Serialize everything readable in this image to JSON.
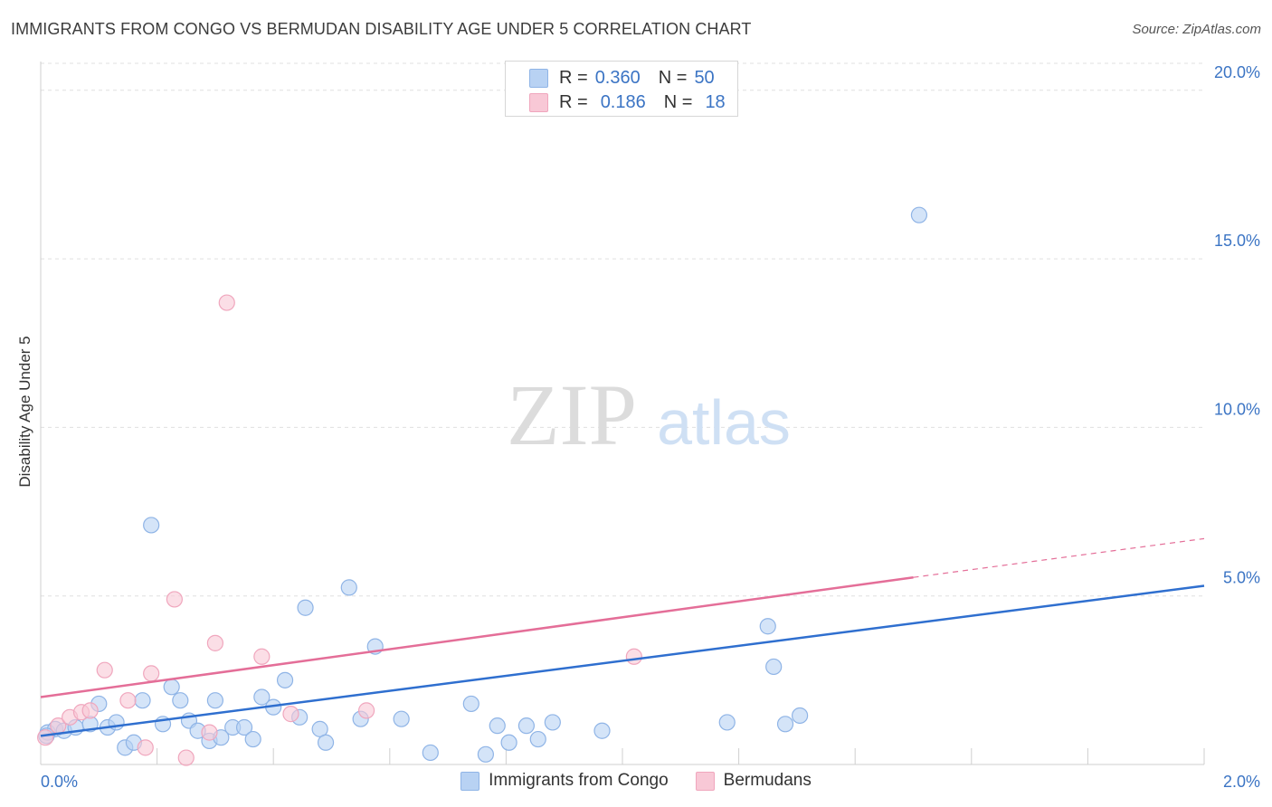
{
  "title": "IMMIGRANTS FROM CONGO VS BERMUDAN DISABILITY AGE UNDER 5 CORRELATION CHART",
  "source": "Source: ZipAtlas.com",
  "watermark": {
    "zip": "ZIP",
    "atlas": "atlas"
  },
  "colors": {
    "blue_fill": "#b8d2f3",
    "blue_stroke": "#8fb4e6",
    "blue_line": "#2f6fcf",
    "pink_fill": "#f8c8d6",
    "pink_stroke": "#f0a6bd",
    "pink_line": "#e46e98",
    "tick_label": "#3b74c4",
    "grid": "#e0e0e0"
  },
  "legend": {
    "rows": [
      {
        "r_label": "R =",
        "r_value": "0.360",
        "n_label": "N =",
        "n_value": "50",
        "color": "#b8d2f3"
      },
      {
        "r_label": "R =",
        "r_value": "0.186",
        "n_label": "N =",
        "n_value": "18",
        "color": "#f8c8d6"
      }
    ]
  },
  "chart_data": {
    "type": "scatter",
    "xlabel": "",
    "ylabel": "Disability Age Under 5",
    "xlim": [
      0,
      2.0
    ],
    "ylim": [
      0,
      20.8
    ],
    "x_tick_labels": [
      {
        "value": 0,
        "label": "0.0%"
      },
      {
        "value": 2.0,
        "label": "2.0%"
      }
    ],
    "y_tick_labels": [
      {
        "value": 5,
        "label": "5.0%"
      },
      {
        "value": 10,
        "label": "10.0%"
      },
      {
        "value": 15,
        "label": "15.0%"
      },
      {
        "value": 20,
        "label": "20.0%"
      }
    ],
    "x_minor_ticks": [
      0.2,
      0.4,
      0.6,
      0.8,
      1.0,
      1.2,
      1.4,
      1.6,
      1.8,
      2.0
    ],
    "grid": true,
    "legend_placement": "bottom",
    "series": [
      {
        "name": "Immigrants from Congo",
        "color": "#b8d2f3",
        "points": [
          [
            0.012,
            0.95
          ],
          [
            0.025,
            1.05
          ],
          [
            0.04,
            1.0
          ],
          [
            0.06,
            1.1
          ],
          [
            0.085,
            1.2
          ],
          [
            0.1,
            1.8
          ],
          [
            0.115,
            1.1
          ],
          [
            0.13,
            1.25
          ],
          [
            0.145,
            0.5
          ],
          [
            0.16,
            0.65
          ],
          [
            0.175,
            1.9
          ],
          [
            0.19,
            7.1
          ],
          [
            0.21,
            1.2
          ],
          [
            0.225,
            2.3
          ],
          [
            0.24,
            1.9
          ],
          [
            0.255,
            1.3
          ],
          [
            0.27,
            1.0
          ],
          [
            0.29,
            0.7
          ],
          [
            0.3,
            1.9
          ],
          [
            0.31,
            0.8
          ],
          [
            0.33,
            1.1
          ],
          [
            0.35,
            1.1
          ],
          [
            0.365,
            0.75
          ],
          [
            0.38,
            2.0
          ],
          [
            0.4,
            1.7
          ],
          [
            0.42,
            2.5
          ],
          [
            0.445,
            1.4
          ],
          [
            0.455,
            4.65
          ],
          [
            0.48,
            1.05
          ],
          [
            0.49,
            0.65
          ],
          [
            0.53,
            5.25
          ],
          [
            0.55,
            1.35
          ],
          [
            0.575,
            3.5
          ],
          [
            0.62,
            1.35
          ],
          [
            0.67,
            0.35
          ],
          [
            0.74,
            1.8
          ],
          [
            0.765,
            0.3
          ],
          [
            0.785,
            1.15
          ],
          [
            0.805,
            0.65
          ],
          [
            0.835,
            1.15
          ],
          [
            0.855,
            0.75
          ],
          [
            0.88,
            1.25
          ],
          [
            0.965,
            1.0
          ],
          [
            1.18,
            1.25
          ],
          [
            1.25,
            4.1
          ],
          [
            1.26,
            2.9
          ],
          [
            1.28,
            1.2
          ],
          [
            1.305,
            1.45
          ],
          [
            1.51,
            16.3
          ],
          [
            0.01,
            0.85
          ]
        ],
        "trend": {
          "x": [
            0,
            2.0
          ],
          "y": [
            0.85,
            5.3
          ]
        }
      },
      {
        "name": "Bermudans",
        "color": "#f8c8d6",
        "points": [
          [
            0.008,
            0.8
          ],
          [
            0.03,
            1.15
          ],
          [
            0.05,
            1.4
          ],
          [
            0.07,
            1.55
          ],
          [
            0.085,
            1.6
          ],
          [
            0.11,
            2.8
          ],
          [
            0.15,
            1.9
          ],
          [
            0.18,
            0.5
          ],
          [
            0.19,
            2.7
          ],
          [
            0.23,
            4.9
          ],
          [
            0.25,
            0.2
          ],
          [
            0.29,
            0.95
          ],
          [
            0.3,
            3.6
          ],
          [
            0.32,
            13.7
          ],
          [
            0.38,
            3.2
          ],
          [
            0.43,
            1.5
          ],
          [
            0.56,
            1.6
          ],
          [
            1.02,
            3.2
          ]
        ],
        "trend": {
          "x": [
            0,
            1.5
          ],
          "y": [
            2.0,
            5.55
          ]
        },
        "trend_extension": {
          "x": [
            1.5,
            2.0
          ],
          "y": [
            5.55,
            6.7
          ]
        }
      }
    ]
  }
}
